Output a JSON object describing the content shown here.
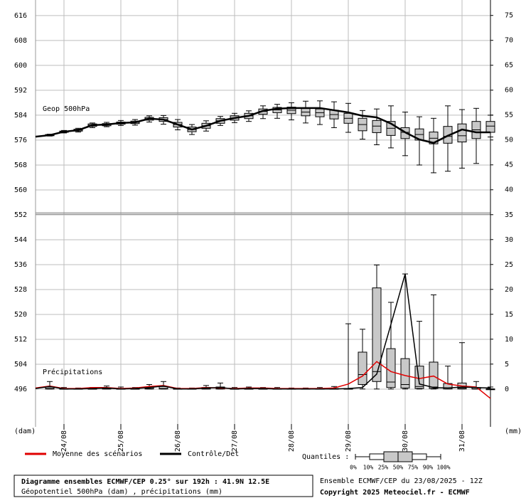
{
  "chart_data": {
    "type": "boxplot",
    "categories": [
      null,
      null,
      "24/08",
      null,
      null,
      null,
      "25/08",
      null,
      null,
      null,
      "26/08",
      null,
      null,
      null,
      "27/08",
      null,
      null,
      null,
      "28/08",
      null,
      null,
      null,
      "29/08",
      null,
      null,
      null,
      "30/08",
      null,
      null,
      null,
      "31/08",
      null,
      null
    ],
    "ylim": [
      483.9,
      621.0
    ],
    "yticks": [
      616,
      608,
      600,
      592,
      584,
      576,
      568,
      560,
      552,
      544,
      536,
      528,
      520,
      512,
      504,
      496
    ],
    "y2lim": [
      -7.6,
      78.1
    ],
    "y2ticks": [
      75,
      70,
      65,
      60,
      55,
      50,
      45,
      40,
      35,
      30,
      25,
      20,
      15,
      10,
      5,
      0
    ],
    "grid": true,
    "y_unit": "(dam)",
    "y2_unit": "(mm)",
    "series": [
      {
        "name": "Moyenne des scénarios",
        "color": "#e00000",
        "axis": "y2",
        "values": [
          0.2,
          0.6,
          0.1,
          0.1,
          0.3,
          0.3,
          0.1,
          0.2,
          0.5,
          0.7,
          0.1,
          0.1,
          0.3,
          0.2,
          0.1,
          0.2,
          0.2,
          0.1,
          0.1,
          0.1,
          0.1,
          0.2,
          1.0,
          2.6,
          5.5,
          3.5,
          2.7,
          2.1,
          2.6,
          1.0,
          0.6,
          0.4,
          -1.9
        ]
      },
      {
        "name": "Contrôle/Det",
        "color": "#000000",
        "values": [
          577.1,
          577.6,
          578.7,
          579.2,
          580.8,
          581.0,
          581.5,
          581.7,
          582.9,
          582.6,
          581.0,
          579.4,
          580.6,
          582.2,
          583.1,
          583.8,
          585.4,
          586.1,
          586.3,
          586.3,
          586.3,
          585.6,
          584.9,
          583.8,
          583.3,
          581.3,
          578.5,
          576.2,
          575.1,
          577.4,
          579.4,
          578.5,
          578.5
        ]
      },
      {
        "color": "#000000",
        "axis": "y2",
        "values": [
          0.1,
          0.5,
          0,
          0,
          0.1,
          0.2,
          0,
          0.1,
          0.3,
          0.6,
          0,
          0,
          0.2,
          0.3,
          0,
          0.1,
          0.1,
          0,
          0,
          0,
          0,
          0,
          0.1,
          0.3,
          3.0,
          13.0,
          23.1,
          1.0,
          0.3,
          0.2,
          0.4,
          0.3,
          0.2
        ]
      }
    ],
    "box_sets": [
      {
        "label": "Geop 500hPa",
        "color": "#c8c8c8",
        "values": [
          null,
          [
            577.3,
            577.4,
            577.6,
            577.8,
            577.9
          ],
          [
            578.3,
            578.5,
            578.7,
            578.9,
            579.1
          ],
          [
            578.6,
            578.9,
            579.2,
            579.5,
            579.8
          ],
          [
            580.0,
            580.4,
            580.8,
            581.2,
            581.5
          ],
          [
            580.3,
            580.6,
            581.0,
            581.3,
            581.7
          ],
          [
            580.7,
            581.1,
            581.5,
            581.8,
            582.3
          ],
          [
            580.8,
            581.3,
            581.7,
            582.1,
            582.6
          ],
          [
            581.8,
            582.4,
            582.9,
            583.3,
            583.8
          ],
          [
            581.1,
            582.0,
            582.6,
            583.2,
            583.9
          ],
          [
            579.3,
            580.2,
            581.0,
            581.7,
            582.6
          ],
          [
            577.8,
            578.7,
            579.4,
            580.2,
            581.0
          ],
          [
            578.9,
            579.8,
            580.6,
            581.4,
            582.2
          ],
          [
            580.7,
            581.4,
            582.2,
            582.9,
            583.6
          ],
          [
            581.6,
            582.4,
            583.1,
            583.8,
            584.6
          ],
          [
            582.0,
            582.9,
            583.8,
            584.6,
            585.4
          ],
          [
            582.9,
            584.3,
            585.2,
            586.0,
            587.0
          ],
          [
            583.0,
            584.8,
            585.7,
            586.5,
            587.5
          ],
          [
            582.5,
            584.5,
            585.6,
            586.6,
            588.0
          ],
          [
            581.5,
            583.8,
            585.0,
            586.2,
            588.5
          ],
          [
            581.0,
            583.5,
            584.8,
            586.0,
            588.6
          ],
          [
            580.0,
            582.8,
            584.2,
            585.6,
            588.3
          ],
          [
            578.5,
            581.4,
            583.0,
            584.6,
            587.8
          ],
          [
            576.3,
            579.0,
            581.0,
            583.0,
            585.5
          ],
          [
            574.5,
            578.4,
            580.5,
            582.3,
            586.0
          ],
          [
            573.5,
            577.5,
            579.8,
            582.0,
            587.0
          ],
          [
            571.0,
            576.5,
            578.5,
            580.0,
            585.0
          ],
          [
            568.0,
            576.0,
            577.8,
            579.6,
            583.5
          ],
          [
            565.5,
            574.8,
            576.6,
            578.6,
            583.0
          ],
          [
            566.0,
            575.0,
            577.2,
            580.4,
            587.0
          ],
          [
            567.0,
            575.4,
            577.4,
            581.2,
            585.8
          ],
          [
            568.5,
            576.5,
            579.3,
            582.0,
            586.2
          ],
          [
            577.0,
            578.5,
            580.5,
            582.0,
            584.0
          ]
        ]
      },
      {
        "label": "Précipitations",
        "color": "#c8c8c8",
        "axis": "y2",
        "values": [
          null,
          [
            0,
            0,
            0.1,
            0.4,
            1.5
          ],
          [
            0,
            0,
            0,
            0.1,
            0.3
          ],
          [
            0,
            0,
            0,
            0.1,
            0.2
          ],
          [
            0,
            0,
            0,
            0.1,
            0.3
          ],
          [
            0,
            0,
            0,
            0.2,
            0.6
          ],
          [
            0,
            0,
            0,
            0.1,
            0.4
          ],
          [
            0,
            0,
            0,
            0.1,
            0.3
          ],
          [
            0,
            0,
            0.1,
            0.4,
            0.9
          ],
          [
            0,
            0,
            0.1,
            0.5,
            1.5
          ],
          [
            0,
            0,
            0,
            0.1,
            0.2
          ],
          [
            0,
            0,
            0,
            0.1,
            0.2
          ],
          [
            0,
            0,
            0,
            0.3,
            0.7
          ],
          [
            0,
            0,
            0.1,
            0.4,
            1.2
          ],
          [
            0,
            0,
            0,
            0.1,
            0.3
          ],
          [
            0,
            0,
            0,
            0.1,
            0.4
          ],
          [
            0,
            0,
            0,
            0.1,
            0.3
          ],
          [
            0,
            0,
            0,
            0.1,
            0.3
          ],
          [
            0,
            0,
            0,
            0.1,
            0.2
          ],
          [
            0,
            0,
            0,
            0.1,
            0.2
          ],
          [
            0,
            0,
            0,
            0.1,
            0.3
          ],
          [
            0,
            0,
            0,
            0.1,
            0.5
          ],
          [
            0,
            0,
            0,
            0.1,
            13.1
          ],
          [
            0,
            0.9,
            2.9,
            7.4,
            12.0
          ],
          [
            0,
            1.5,
            3.5,
            20.3,
            24.9
          ],
          [
            0,
            0.3,
            1.4,
            8.1,
            17.4
          ],
          [
            0,
            0.2,
            0.9,
            6.1,
            23.1
          ],
          [
            0,
            0.1,
            0.5,
            4.6,
            13.6
          ],
          [
            0,
            0.1,
            0.4,
            5.4,
            18.9
          ],
          [
            0,
            0,
            0.2,
            1.1,
            4.6
          ],
          [
            0,
            0,
            0.2,
            1.2,
            9.3
          ],
          [
            0,
            0,
            0,
            0.3,
            1.5
          ],
          [
            0,
            0,
            0,
            0,
            0.4
          ]
        ]
      }
    ],
    "quantiles_label": "Quantiles :",
    "quantile_levels": [
      "0%",
      "10%",
      "25%",
      "50%",
      "75%",
      "90%",
      "100%"
    ],
    "footer": [
      "Diagramme ensembles ECMWF/CEP 0.25° sur 192h : 41.9N 12.5E",
      "Géopotentiel 500hPa (dam) , précipitations (mm)",
      "Ensemble ECMWF/CEP du 23/08/2025 - 12Z",
      "Copyright 2025 Meteociel.fr - ECMWF"
    ]
  }
}
